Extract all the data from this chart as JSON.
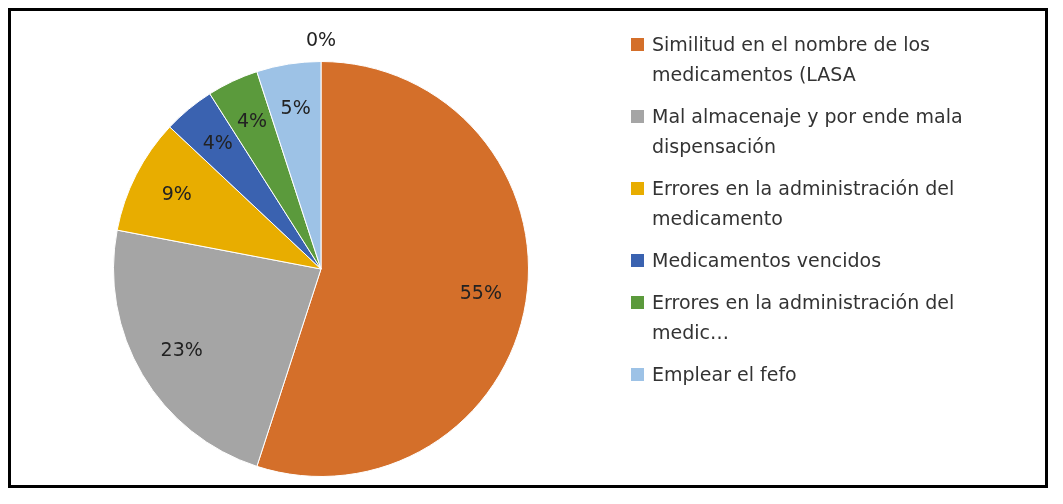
{
  "chart_data": {
    "type": "pie",
    "categories": [
      "Similitud en el nombre de los medicamentos (LASA",
      "Mal almacenaje y por ende mala dispensación",
      "Errores en la administración del medicamento",
      "Medicamentos vencidos",
      "Errores en la administración del medic…",
      "Emplear el fefo",
      null
    ],
    "values": [
      55,
      23,
      9,
      4,
      4,
      5,
      0
    ],
    "colors": [
      "#d46f2a",
      "#a5a5a5",
      "#e8ad00",
      "#3a62b0",
      "#5b9a3c",
      "#9dc2e6",
      "#2b4a80"
    ],
    "value_labels": [
      "55%",
      "23%",
      "9%",
      "4%",
      "4%",
      "5%",
      "0%"
    ],
    "legend": "right"
  }
}
